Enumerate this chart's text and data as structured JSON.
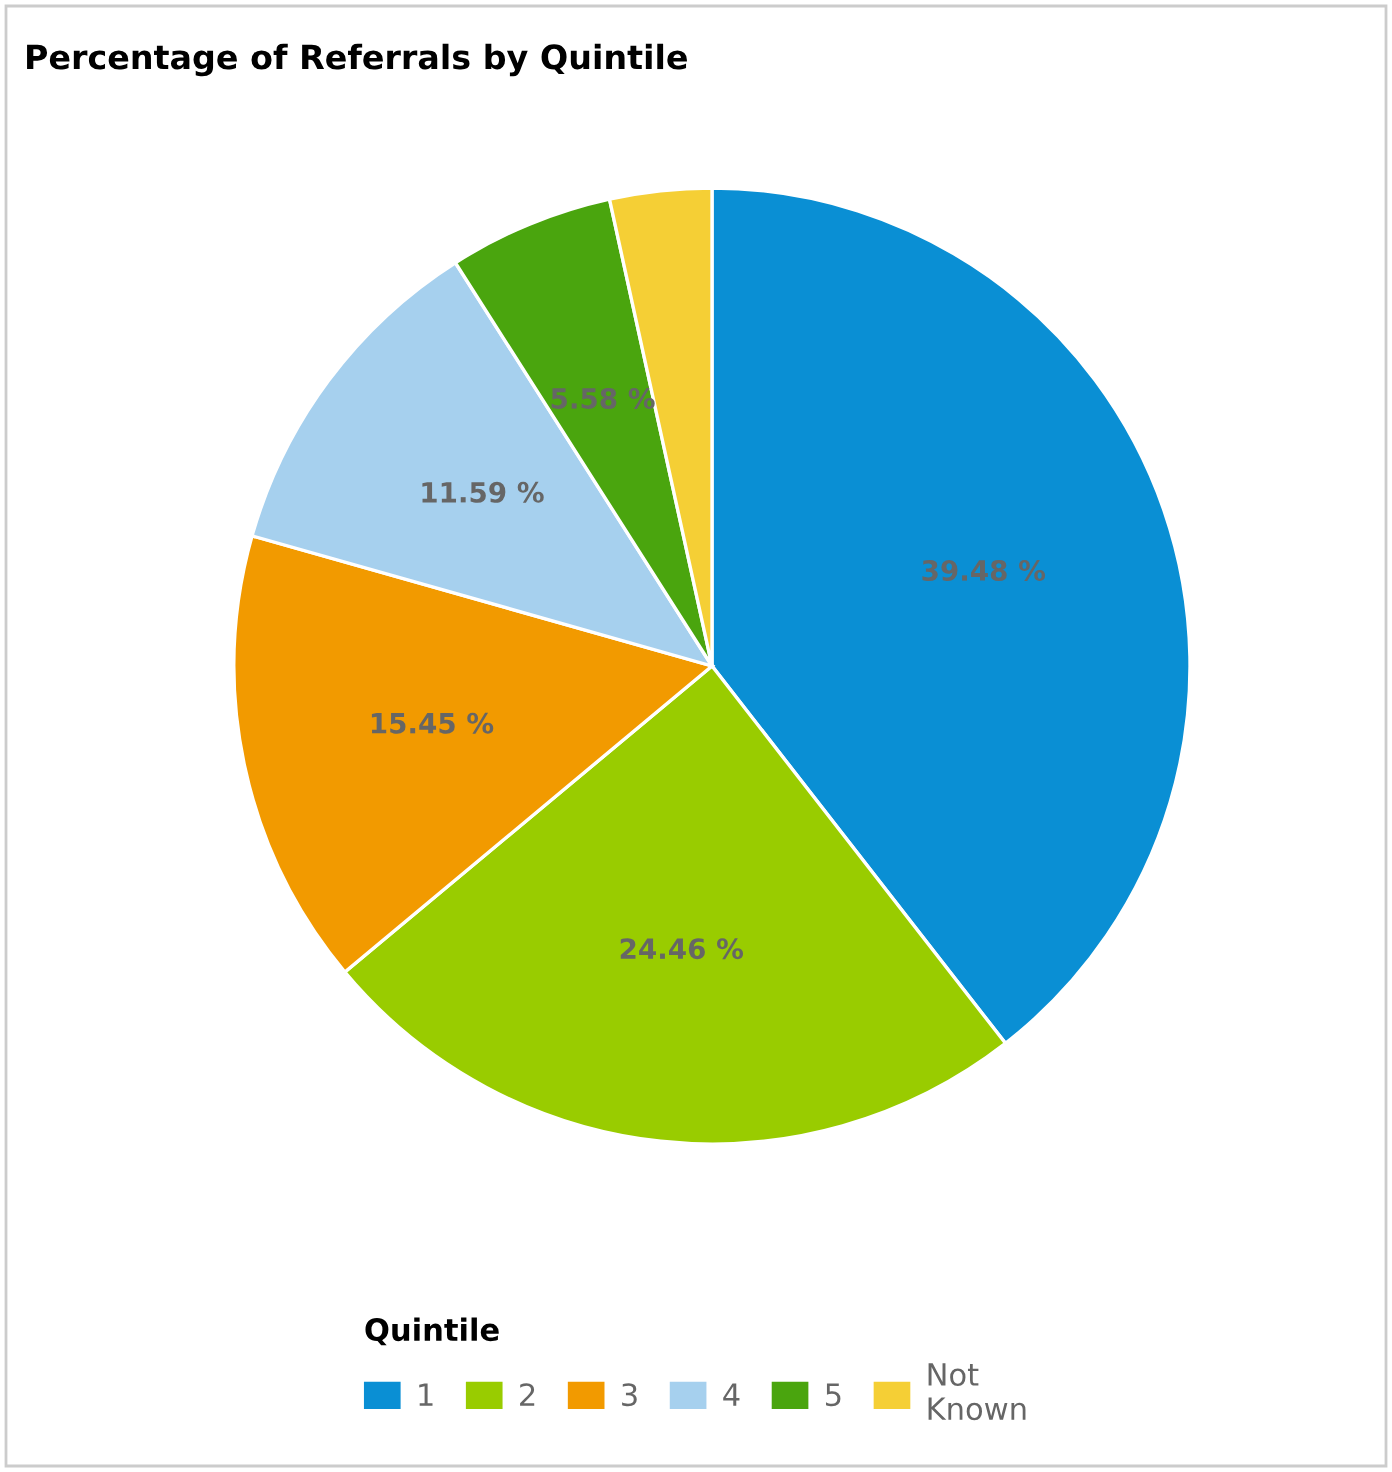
{
  "chart_data": {
    "type": "pie",
    "title": "Percentage of Referrals by Quintile",
    "legend_title": "Quintile",
    "categories": [
      "1",
      "2",
      "3",
      "4",
      "5",
      "Not Known"
    ],
    "values": [
      39.48,
      24.46,
      15.45,
      11.59,
      5.58,
      3.44
    ],
    "value_labels": [
      "39.48 %",
      "24.46 %",
      "15.45 %",
      "11.59 %",
      "5.58 %",
      null
    ],
    "colors": [
      "#0a8fd4",
      "#99cc00",
      "#f29a00",
      "#a6d0ee",
      "#4aa50e",
      "#f5cf35"
    ],
    "legend": "bottom"
  }
}
